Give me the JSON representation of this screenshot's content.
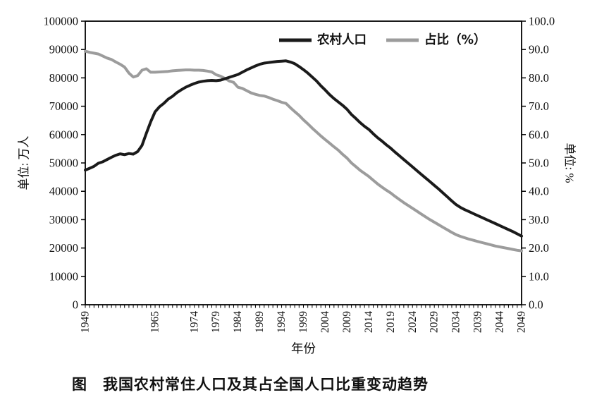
{
  "chart_data": {
    "type": "line",
    "title": "图　我国农村常住人口及其占全国人口比重变动趋势",
    "xlabel": "年份",
    "ylabel_left": "单位: 万人",
    "ylabel_right": "单位: %",
    "x_range": [
      1949,
      2049
    ],
    "x_tick_years": [
      1949,
      1965,
      1974,
      1979,
      1984,
      1989,
      1994,
      1999,
      2004,
      2009,
      2014,
      2019,
      2024,
      2029,
      2034,
      2039,
      2044,
      2049
    ],
    "ylim_left": [
      0,
      100000
    ],
    "yticks_left": [
      "0",
      "10000",
      "20000",
      "30000",
      "40000",
      "50000",
      "60000",
      "70000",
      "80000",
      "90000",
      "100000"
    ],
    "ylim_right": [
      0,
      100
    ],
    "yticks_right": [
      "0.0",
      "10.0",
      "20.0",
      "30.0",
      "40.0",
      "50.0",
      "60.0",
      "70.0",
      "80.0",
      "90.0",
      "100.0"
    ],
    "grid": false,
    "legend_position": "top-inside",
    "legend": [
      {
        "label": "农村人口",
        "color": "#1a1a1a"
      },
      {
        "label": "占比（%）",
        "color": "#9c9c9c"
      }
    ],
    "series": [
      {
        "name": "占比（%）",
        "axis": "right",
        "color": "#9c9c9c",
        "width": 4,
        "points": [
          [
            1949,
            89.4
          ],
          [
            1950,
            89.0
          ],
          [
            1951,
            88.7
          ],
          [
            1952,
            88.4
          ],
          [
            1953,
            87.7
          ],
          [
            1954,
            87.0
          ],
          [
            1955,
            86.5
          ],
          [
            1956,
            85.6
          ],
          [
            1957,
            84.8
          ],
          [
            1958,
            83.8
          ],
          [
            1959,
            81.7
          ],
          [
            1960,
            80.3
          ],
          [
            1961,
            80.8
          ],
          [
            1962,
            82.7
          ],
          [
            1963,
            83.2
          ],
          [
            1964,
            82.0
          ],
          [
            1965,
            82.0
          ],
          [
            1966,
            82.1
          ],
          [
            1967,
            82.2
          ],
          [
            1968,
            82.3
          ],
          [
            1969,
            82.5
          ],
          [
            1970,
            82.6
          ],
          [
            1971,
            82.7
          ],
          [
            1972,
            82.8
          ],
          [
            1973,
            82.8
          ],
          [
            1974,
            82.7
          ],
          [
            1975,
            82.7
          ],
          [
            1976,
            82.6
          ],
          [
            1977,
            82.4
          ],
          [
            1978,
            82.1
          ],
          [
            1979,
            81.1
          ],
          [
            1980,
            80.6
          ],
          [
            1981,
            79.8
          ],
          [
            1982,
            78.9
          ],
          [
            1983,
            78.4
          ],
          [
            1984,
            76.7
          ],
          [
            1985,
            76.3
          ],
          [
            1986,
            75.5
          ],
          [
            1987,
            74.7
          ],
          [
            1988,
            74.2
          ],
          [
            1989,
            73.8
          ],
          [
            1990,
            73.6
          ],
          [
            1991,
            73.1
          ],
          [
            1992,
            72.5
          ],
          [
            1993,
            72.0
          ],
          [
            1994,
            71.4
          ],
          [
            1995,
            71.0
          ],
          [
            1996,
            69.5
          ],
          [
            1997,
            68.1
          ],
          [
            1998,
            66.8
          ],
          [
            1999,
            65.2
          ],
          [
            2000,
            63.8
          ],
          [
            2001,
            62.3
          ],
          [
            2002,
            60.9
          ],
          [
            2003,
            59.5
          ],
          [
            2004,
            58.2
          ],
          [
            2005,
            57.0
          ],
          [
            2006,
            55.7
          ],
          [
            2007,
            54.5
          ],
          [
            2008,
            53.0
          ],
          [
            2009,
            51.7
          ],
          [
            2010,
            50.0
          ],
          [
            2011,
            48.7
          ],
          [
            2012,
            47.4
          ],
          [
            2013,
            46.3
          ],
          [
            2014,
            45.2
          ],
          [
            2015,
            43.9
          ],
          [
            2016,
            42.6
          ],
          [
            2017,
            41.5
          ],
          [
            2018,
            40.4
          ],
          [
            2019,
            39.4
          ],
          [
            2020,
            38.2
          ],
          [
            2021,
            37.1
          ],
          [
            2022,
            36.0
          ],
          [
            2023,
            35.0
          ],
          [
            2024,
            34.0
          ],
          [
            2025,
            33.0
          ],
          [
            2026,
            32.0
          ],
          [
            2027,
            31.0
          ],
          [
            2028,
            30.0
          ],
          [
            2029,
            29.1
          ],
          [
            2030,
            28.2
          ],
          [
            2031,
            27.3
          ],
          [
            2032,
            26.4
          ],
          [
            2033,
            25.5
          ],
          [
            2034,
            24.7
          ],
          [
            2035,
            24.1
          ],
          [
            2036,
            23.6
          ],
          [
            2037,
            23.1
          ],
          [
            2038,
            22.7
          ],
          [
            2039,
            22.3
          ],
          [
            2040,
            21.9
          ],
          [
            2041,
            21.5
          ],
          [
            2042,
            21.1
          ],
          [
            2043,
            20.7
          ],
          [
            2044,
            20.4
          ],
          [
            2045,
            20.1
          ],
          [
            2046,
            19.8
          ],
          [
            2047,
            19.5
          ],
          [
            2048,
            19.2
          ],
          [
            2049,
            19.0
          ]
        ]
      },
      {
        "name": "农村人口",
        "axis": "left",
        "color": "#1a1a1a",
        "width": 4,
        "points": [
          [
            1949,
            47500
          ],
          [
            1950,
            48100
          ],
          [
            1951,
            48800
          ],
          [
            1952,
            49900
          ],
          [
            1953,
            50400
          ],
          [
            1954,
            51200
          ],
          [
            1955,
            52000
          ],
          [
            1956,
            52700
          ],
          [
            1957,
            53200
          ],
          [
            1958,
            52900
          ],
          [
            1959,
            53300
          ],
          [
            1960,
            53100
          ],
          [
            1961,
            54000
          ],
          [
            1962,
            56200
          ],
          [
            1963,
            60500
          ],
          [
            1964,
            64500
          ],
          [
            1965,
            68000
          ],
          [
            1966,
            69800
          ],
          [
            1967,
            71000
          ],
          [
            1968,
            72500
          ],
          [
            1969,
            73500
          ],
          [
            1970,
            74800
          ],
          [
            1971,
            75800
          ],
          [
            1972,
            76700
          ],
          [
            1973,
            77400
          ],
          [
            1974,
            78000
          ],
          [
            1975,
            78500
          ],
          [
            1976,
            78800
          ],
          [
            1977,
            79000
          ],
          [
            1978,
            79100
          ],
          [
            1979,
            79000
          ],
          [
            1980,
            79200
          ],
          [
            1981,
            79700
          ],
          [
            1982,
            80200
          ],
          [
            1983,
            80700
          ],
          [
            1984,
            81200
          ],
          [
            1985,
            82000
          ],
          [
            1986,
            82800
          ],
          [
            1987,
            83500
          ],
          [
            1988,
            84200
          ],
          [
            1989,
            84800
          ],
          [
            1990,
            85200
          ],
          [
            1991,
            85400
          ],
          [
            1992,
            85600
          ],
          [
            1993,
            85800
          ],
          [
            1994,
            85900
          ],
          [
            1995,
            86000
          ],
          [
            1996,
            85600
          ],
          [
            1997,
            85000
          ],
          [
            1998,
            84000
          ],
          [
            1999,
            82900
          ],
          [
            2000,
            81700
          ],
          [
            2001,
            80300
          ],
          [
            2002,
            78900
          ],
          [
            2003,
            77200
          ],
          [
            2004,
            75700
          ],
          [
            2005,
            74100
          ],
          [
            2006,
            72700
          ],
          [
            2007,
            71500
          ],
          [
            2008,
            70300
          ],
          [
            2009,
            68900
          ],
          [
            2010,
            67100
          ],
          [
            2011,
            65700
          ],
          [
            2012,
            64200
          ],
          [
            2013,
            62900
          ],
          [
            2014,
            61800
          ],
          [
            2015,
            60300
          ],
          [
            2016,
            58900
          ],
          [
            2017,
            57700
          ],
          [
            2018,
            56400
          ],
          [
            2019,
            55200
          ],
          [
            2020,
            53800
          ],
          [
            2021,
            52500
          ],
          [
            2022,
            51200
          ],
          [
            2023,
            49900
          ],
          [
            2024,
            48600
          ],
          [
            2025,
            47300
          ],
          [
            2026,
            46000
          ],
          [
            2027,
            44700
          ],
          [
            2028,
            43400
          ],
          [
            2029,
            42100
          ],
          [
            2030,
            40800
          ],
          [
            2031,
            39400
          ],
          [
            2032,
            38000
          ],
          [
            2033,
            36600
          ],
          [
            2034,
            35300
          ],
          [
            2035,
            34300
          ],
          [
            2036,
            33500
          ],
          [
            2037,
            32800
          ],
          [
            2038,
            32100
          ],
          [
            2039,
            31400
          ],
          [
            2040,
            30700
          ],
          [
            2041,
            30000
          ],
          [
            2042,
            29300
          ],
          [
            2043,
            28600
          ],
          [
            2044,
            27900
          ],
          [
            2045,
            27200
          ],
          [
            2046,
            26500
          ],
          [
            2047,
            25800
          ],
          [
            2048,
            25000
          ],
          [
            2049,
            24200
          ]
        ]
      }
    ]
  }
}
